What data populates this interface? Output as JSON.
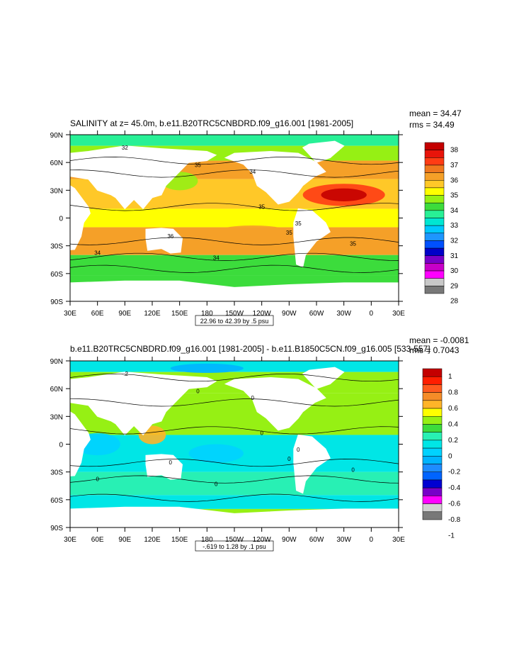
{
  "chart_data": [
    {
      "type": "heatmap",
      "title": "SALINITY at z=  45.0m, b.e11.B20TRC5CNBDRD.f09_g16.001 [1981-2005]",
      "stats": [
        "mean = 34.47",
        "rms = 34.49"
      ],
      "range_label": "22.96 to 42.39 by .5 psu",
      "x_ticks": [
        "30E",
        "60E",
        "90E",
        "120E",
        "150E",
        "180",
        "150W",
        "120W",
        "90W",
        "60W",
        "30W",
        "0",
        "30E"
      ],
      "y_ticks": [
        "90N",
        "60N",
        "30N",
        "0",
        "30S",
        "60S",
        "90S"
      ],
      "colorbar": {
        "labels": [
          "38",
          "37",
          "36",
          "35",
          "34",
          "33",
          "32",
          "31",
          "30",
          "29",
          "28"
        ],
        "colors": [
          "#c40000",
          "#e8140a",
          "#ff3c14",
          "#f0781e",
          "#f5a028",
          "#ffc828",
          "#ffff00",
          "#96f014",
          "#3cdc3c",
          "#28f096",
          "#00e6d2",
          "#00c8ff",
          "#1e96ff",
          "#0050ff",
          "#0000c8",
          "#7800c8",
          "#c800c8",
          "#ff00ff",
          "#c8c8c8",
          "#787878"
        ]
      },
      "contour_labels": [
        "32",
        "35",
        "34",
        "35",
        "35",
        "36",
        "34",
        "34",
        "35",
        "35"
      ]
    },
    {
      "type": "heatmap",
      "title": "b.e11.B20TRC5CNBDRD.f09_g16.001 [1981-2005] - b.e11.B1850C5CN.f09_g16.005 [533-557]",
      "stats": [
        "mean = -0.0081",
        "rms = 0.7043"
      ],
      "range_label": "-.619 to 1.28 by .1 psu",
      "x_ticks": [
        "30E",
        "60E",
        "90E",
        "120E",
        "150E",
        "180",
        "150W",
        "120W",
        "90W",
        "60W",
        "30W",
        "0",
        "30E"
      ],
      "y_ticks": [
        "90N",
        "60N",
        "30N",
        "0",
        "30S",
        "60S",
        "90S"
      ],
      "colorbar": {
        "labels": [
          "1",
          "0.8",
          "0.6",
          "0.4",
          "0.2",
          "0",
          "-0.2",
          "-0.4",
          "-0.6",
          "-0.8",
          "-1"
        ],
        "colors": [
          "#c40000",
          "#ff1e00",
          "#ff5a1e",
          "#f58c28",
          "#ffb428",
          "#ffff00",
          "#96f014",
          "#3cdc3c",
          "#28f0b4",
          "#00e6e6",
          "#00d2ff",
          "#00b4ff",
          "#1e8cff",
          "#0064ff",
          "#0000d2",
          "#7800c8",
          "#ff00ff",
          "#d2d2d2",
          "#787878"
        ]
      },
      "contour_labels": [
        "-.2",
        "0",
        "0",
        "0",
        "0",
        "0",
        "0",
        "0",
        "0",
        "0"
      ]
    }
  ]
}
